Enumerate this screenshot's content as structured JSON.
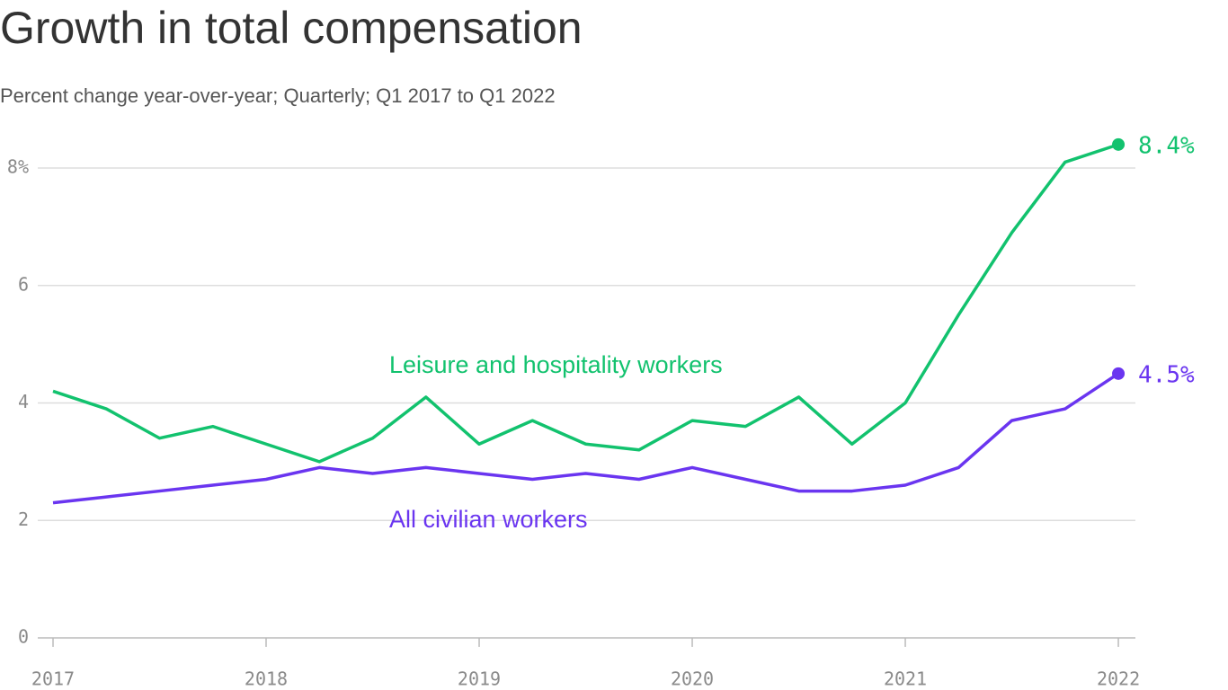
{
  "chart_data": {
    "type": "line",
    "title": "Growth in total compensation",
    "subtitle": "Percent change year-over-year; Quarterly; Q1 2017 to Q1 2022",
    "x": [
      2017,
      2017.25,
      2017.5,
      2017.75,
      2018,
      2018.25,
      2018.5,
      2018.75,
      2019,
      2019.25,
      2019.5,
      2019.75,
      2020,
      2020.25,
      2020.5,
      2020.75,
      2021,
      2021.25,
      2021.5,
      2021.75,
      2022
    ],
    "xlim": [
      2017,
      2022.08
    ],
    "xticks": [
      2017,
      2018,
      2019,
      2020,
      2021,
      2022
    ],
    "ylim": [
      0,
      8
    ],
    "yticks": [
      0,
      2,
      4,
      6,
      {
        "value": 8,
        "label": "8%"
      }
    ],
    "grid": true,
    "series": [
      {
        "name": "Leisure and hospitality workers",
        "color": "#12c26e",
        "values": [
          4.2,
          3.9,
          3.4,
          3.6,
          3.3,
          3.0,
          3.4,
          4.1,
          3.3,
          3.7,
          3.3,
          3.2,
          3.7,
          3.6,
          4.1,
          3.3,
          4.0,
          5.5,
          6.9,
          8.1,
          8.4
        ],
        "value_labels": [
          null,
          null,
          null,
          null,
          null,
          null,
          null,
          null,
          null,
          null,
          null,
          null,
          null,
          null,
          null,
          null,
          null,
          null,
          null,
          null,
          "8.4%"
        ]
      },
      {
        "name": "All civilian workers",
        "color": "#6a35f0",
        "values": [
          2.3,
          2.4,
          2.5,
          2.6,
          2.7,
          2.9,
          2.8,
          2.9,
          2.8,
          2.7,
          2.8,
          2.7,
          2.9,
          2.7,
          2.5,
          2.5,
          2.6,
          2.9,
          3.7,
          3.9,
          4.5
        ],
        "value_labels": [
          null,
          null,
          null,
          null,
          null,
          null,
          null,
          null,
          null,
          null,
          null,
          null,
          null,
          null,
          null,
          null,
          null,
          null,
          null,
          null,
          "4.5%"
        ]
      }
    ]
  }
}
